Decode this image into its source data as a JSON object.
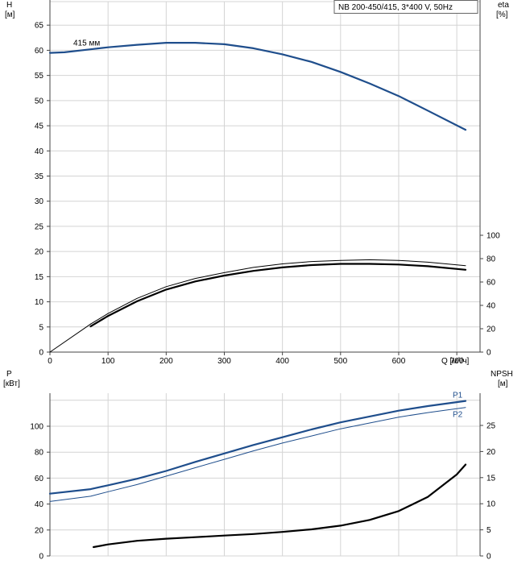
{
  "chart_data": [
    {
      "type": "line",
      "title": "NB 200-450/415, 3*400 V, 50Hz",
      "x": {
        "label": "Q [м³/ч]",
        "lim": [
          0,
          740
        ],
        "ticks": [
          0,
          100,
          200,
          300,
          400,
          500,
          600,
          700
        ]
      },
      "y_left": {
        "label": "H",
        "unit": "[м]",
        "lim": [
          0,
          70
        ],
        "ticks": [
          0,
          5,
          10,
          15,
          20,
          25,
          30,
          35,
          40,
          45,
          50,
          55,
          60,
          65
        ]
      },
      "y_right": {
        "label": "eta",
        "unit": "[%]",
        "lim": [
          0,
          100
        ],
        "ticks": [
          0,
          20,
          40,
          60,
          80,
          100
        ]
      },
      "grid": true,
      "series": [
        {
          "name": "415 мм",
          "axis": "left",
          "color": "#1f4e8c",
          "width": 2.2,
          "x": [
            0,
            25,
            70,
            100,
            150,
            200,
            250,
            300,
            350,
            400,
            450,
            500,
            550,
            600,
            650,
            715
          ],
          "y": [
            59.5,
            59.6,
            60.2,
            60.6,
            61.1,
            61.5,
            61.5,
            61.2,
            60.4,
            59.2,
            57.7,
            55.7,
            53.4,
            50.9,
            48.0,
            44.2
          ]
        },
        {
          "axis": "right",
          "color": "#000000",
          "width": 1.0,
          "x": [
            0,
            70
          ],
          "y": [
            0,
            24
          ]
        },
        {
          "axis": "right",
          "color": "#000000",
          "width": 1.0,
          "x": [
            70,
            100,
            150,
            200,
            250,
            300,
            350,
            400,
            450,
            500,
            550,
            600,
            650,
            715
          ],
          "y": [
            24,
            33,
            46,
            56,
            63,
            68,
            72.5,
            75.5,
            77.5,
            78.5,
            79,
            78.5,
            77,
            74
          ]
        },
        {
          "axis": "right",
          "color": "#000000",
          "width": 2.2,
          "x": [
            70,
            100,
            150,
            200,
            250,
            300,
            350,
            400,
            450,
            500,
            550,
            600,
            650,
            715
          ],
          "y": [
            22,
            31,
            43.5,
            53.5,
            60.5,
            65.5,
            69.5,
            72.5,
            74.5,
            75.5,
            75.5,
            75,
            73.5,
            70.5
          ]
        }
      ]
    },
    {
      "type": "line",
      "x": {
        "lim": [
          0,
          740
        ]
      },
      "y_left": {
        "label": "P",
        "unit": "[кВт]",
        "lim": [
          0,
          120
        ],
        "ticks": [
          0,
          20,
          40,
          60,
          80,
          100
        ]
      },
      "y_right": {
        "label": "NPSH",
        "unit": "[м]",
        "lim": [
          0,
          30
        ],
        "ticks": [
          0,
          5,
          10,
          15,
          20,
          25
        ]
      },
      "grid": true,
      "series": [
        {
          "name": "P1",
          "axis": "left",
          "color": "#1f4e8c",
          "width": 2.2,
          "x": [
            0,
            70,
            100,
            150,
            200,
            250,
            300,
            350,
            400,
            450,
            500,
            550,
            600,
            650,
            715
          ],
          "y": [
            48,
            51.5,
            54.5,
            59.5,
            65.5,
            72.5,
            79,
            85.5,
            91.5,
            97.5,
            103,
            107.5,
            112,
            115.5,
            119.5
          ]
        },
        {
          "name": "P2",
          "axis": "left",
          "color": "#1f4e8c",
          "width": 1.0,
          "x": [
            0,
            70,
            100,
            150,
            200,
            250,
            300,
            350,
            400,
            450,
            500,
            550,
            600,
            650,
            715
          ],
          "y": [
            42,
            46,
            49.5,
            55,
            61.5,
            68,
            74.5,
            81,
            87,
            92.5,
            98,
            102.5,
            107,
            110.5,
            114.5
          ]
        },
        {
          "axis": "right",
          "color": "#000000",
          "width": 2.2,
          "x": [
            75,
            100,
            150,
            200,
            250,
            300,
            350,
            400,
            450,
            500,
            550,
            600,
            650,
            700,
            715
          ],
          "y": [
            1.7,
            2.2,
            2.9,
            3.3,
            3.6,
            3.9,
            4.2,
            4.6,
            5.1,
            5.8,
            6.9,
            8.6,
            11.3,
            15.6,
            17.5
          ]
        }
      ]
    }
  ]
}
